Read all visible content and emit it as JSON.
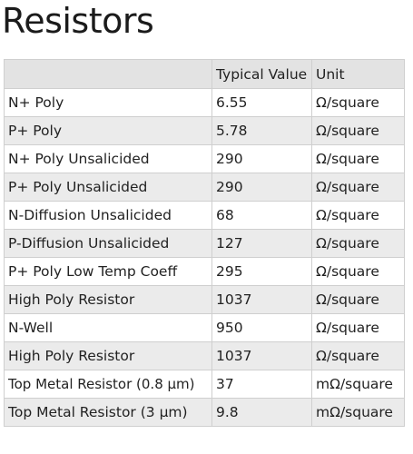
{
  "page": {
    "title": "Resistors"
  },
  "table": {
    "headers": [
      "",
      "Typical Value",
      "Unit"
    ],
    "rows": [
      {
        "name": "N+ Poly",
        "value": "6.55",
        "unit": "Ω/square"
      },
      {
        "name": "P+ Poly",
        "value": "5.78",
        "unit": "Ω/square"
      },
      {
        "name": "N+ Poly Unsalicided",
        "value": "290",
        "unit": "Ω/square"
      },
      {
        "name": "P+ Poly Unsalicided",
        "value": "290",
        "unit": "Ω/square"
      },
      {
        "name": "N-Diffusion Unsalicided",
        "value": "68",
        "unit": "Ω/square"
      },
      {
        "name": "P-Diffusion Unsalicided",
        "value": "127",
        "unit": "Ω/square"
      },
      {
        "name": "P+ Poly Low Temp Coeff",
        "value": "295",
        "unit": "Ω/square"
      },
      {
        "name": "High Poly Resistor",
        "value": "1037",
        "unit": "Ω/square"
      },
      {
        "name": "N-Well",
        "value": "950",
        "unit": "Ω/square"
      },
      {
        "name": "High Poly Resistor",
        "value": "1037",
        "unit": "Ω/square"
      },
      {
        "name": "Top Metal Resistor (0.8 µm)",
        "value": "37",
        "unit": "mΩ/square"
      },
      {
        "name": "Top Metal Resistor (3 µm)",
        "value": "9.8",
        "unit": "mΩ/square"
      }
    ]
  }
}
